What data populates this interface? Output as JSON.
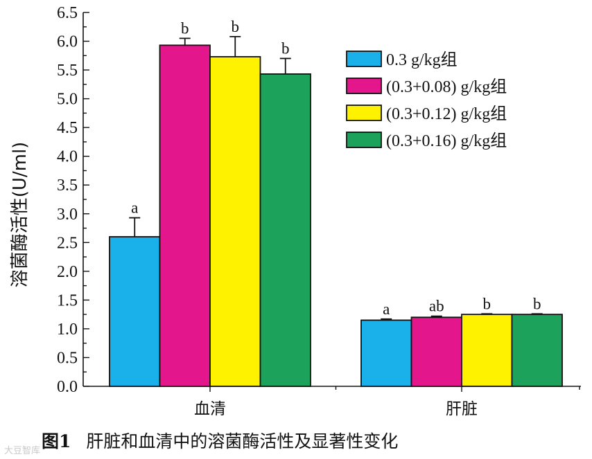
{
  "chart_data": {
    "type": "bar",
    "title": "",
    "xlabel": "",
    "ylabel": "溶菌酶活性(U/ml)",
    "ylim": [
      0,
      6.5
    ],
    "yticks": [
      "0.0",
      "0.5",
      "1.0",
      "1.5",
      "2.0",
      "2.5",
      "3.0",
      "3.5",
      "4.0",
      "4.5",
      "5.0",
      "5.5",
      "6.0",
      "6.5"
    ],
    "grid": false,
    "legend_position": "top-right",
    "categories": [
      "血清",
      "肝脏"
    ],
    "series": [
      {
        "name": "0.3 g/kg组",
        "color": "#1ab0ea",
        "values": [
          2.6,
          1.15
        ],
        "errors": [
          0.33,
          0.02
        ],
        "labels": [
          "a",
          "a"
        ]
      },
      {
        "name": "(0.3+0.08) g/kg组",
        "color": "#e3168b",
        "values": [
          5.93,
          1.2
        ],
        "errors": [
          0.12,
          0.02
        ],
        "labels": [
          "b",
          "ab"
        ]
      },
      {
        "name": "(0.3+0.12) g/kg组",
        "color": "#fef200",
        "values": [
          5.73,
          1.25
        ],
        "errors": [
          0.35,
          0.01
        ],
        "labels": [
          "b",
          "b"
        ]
      },
      {
        "name": "(0.3+0.16) g/kg组",
        "color": "#1ca25a",
        "values": [
          5.43,
          1.25
        ],
        "errors": [
          0.27,
          0.01
        ],
        "labels": [
          "b",
          "b"
        ]
      }
    ]
  },
  "caption": {
    "figure_number": "图1",
    "text": "肝脏和血清中的溶菌酶活性及显著性变化"
  },
  "watermark": "大豆智库"
}
